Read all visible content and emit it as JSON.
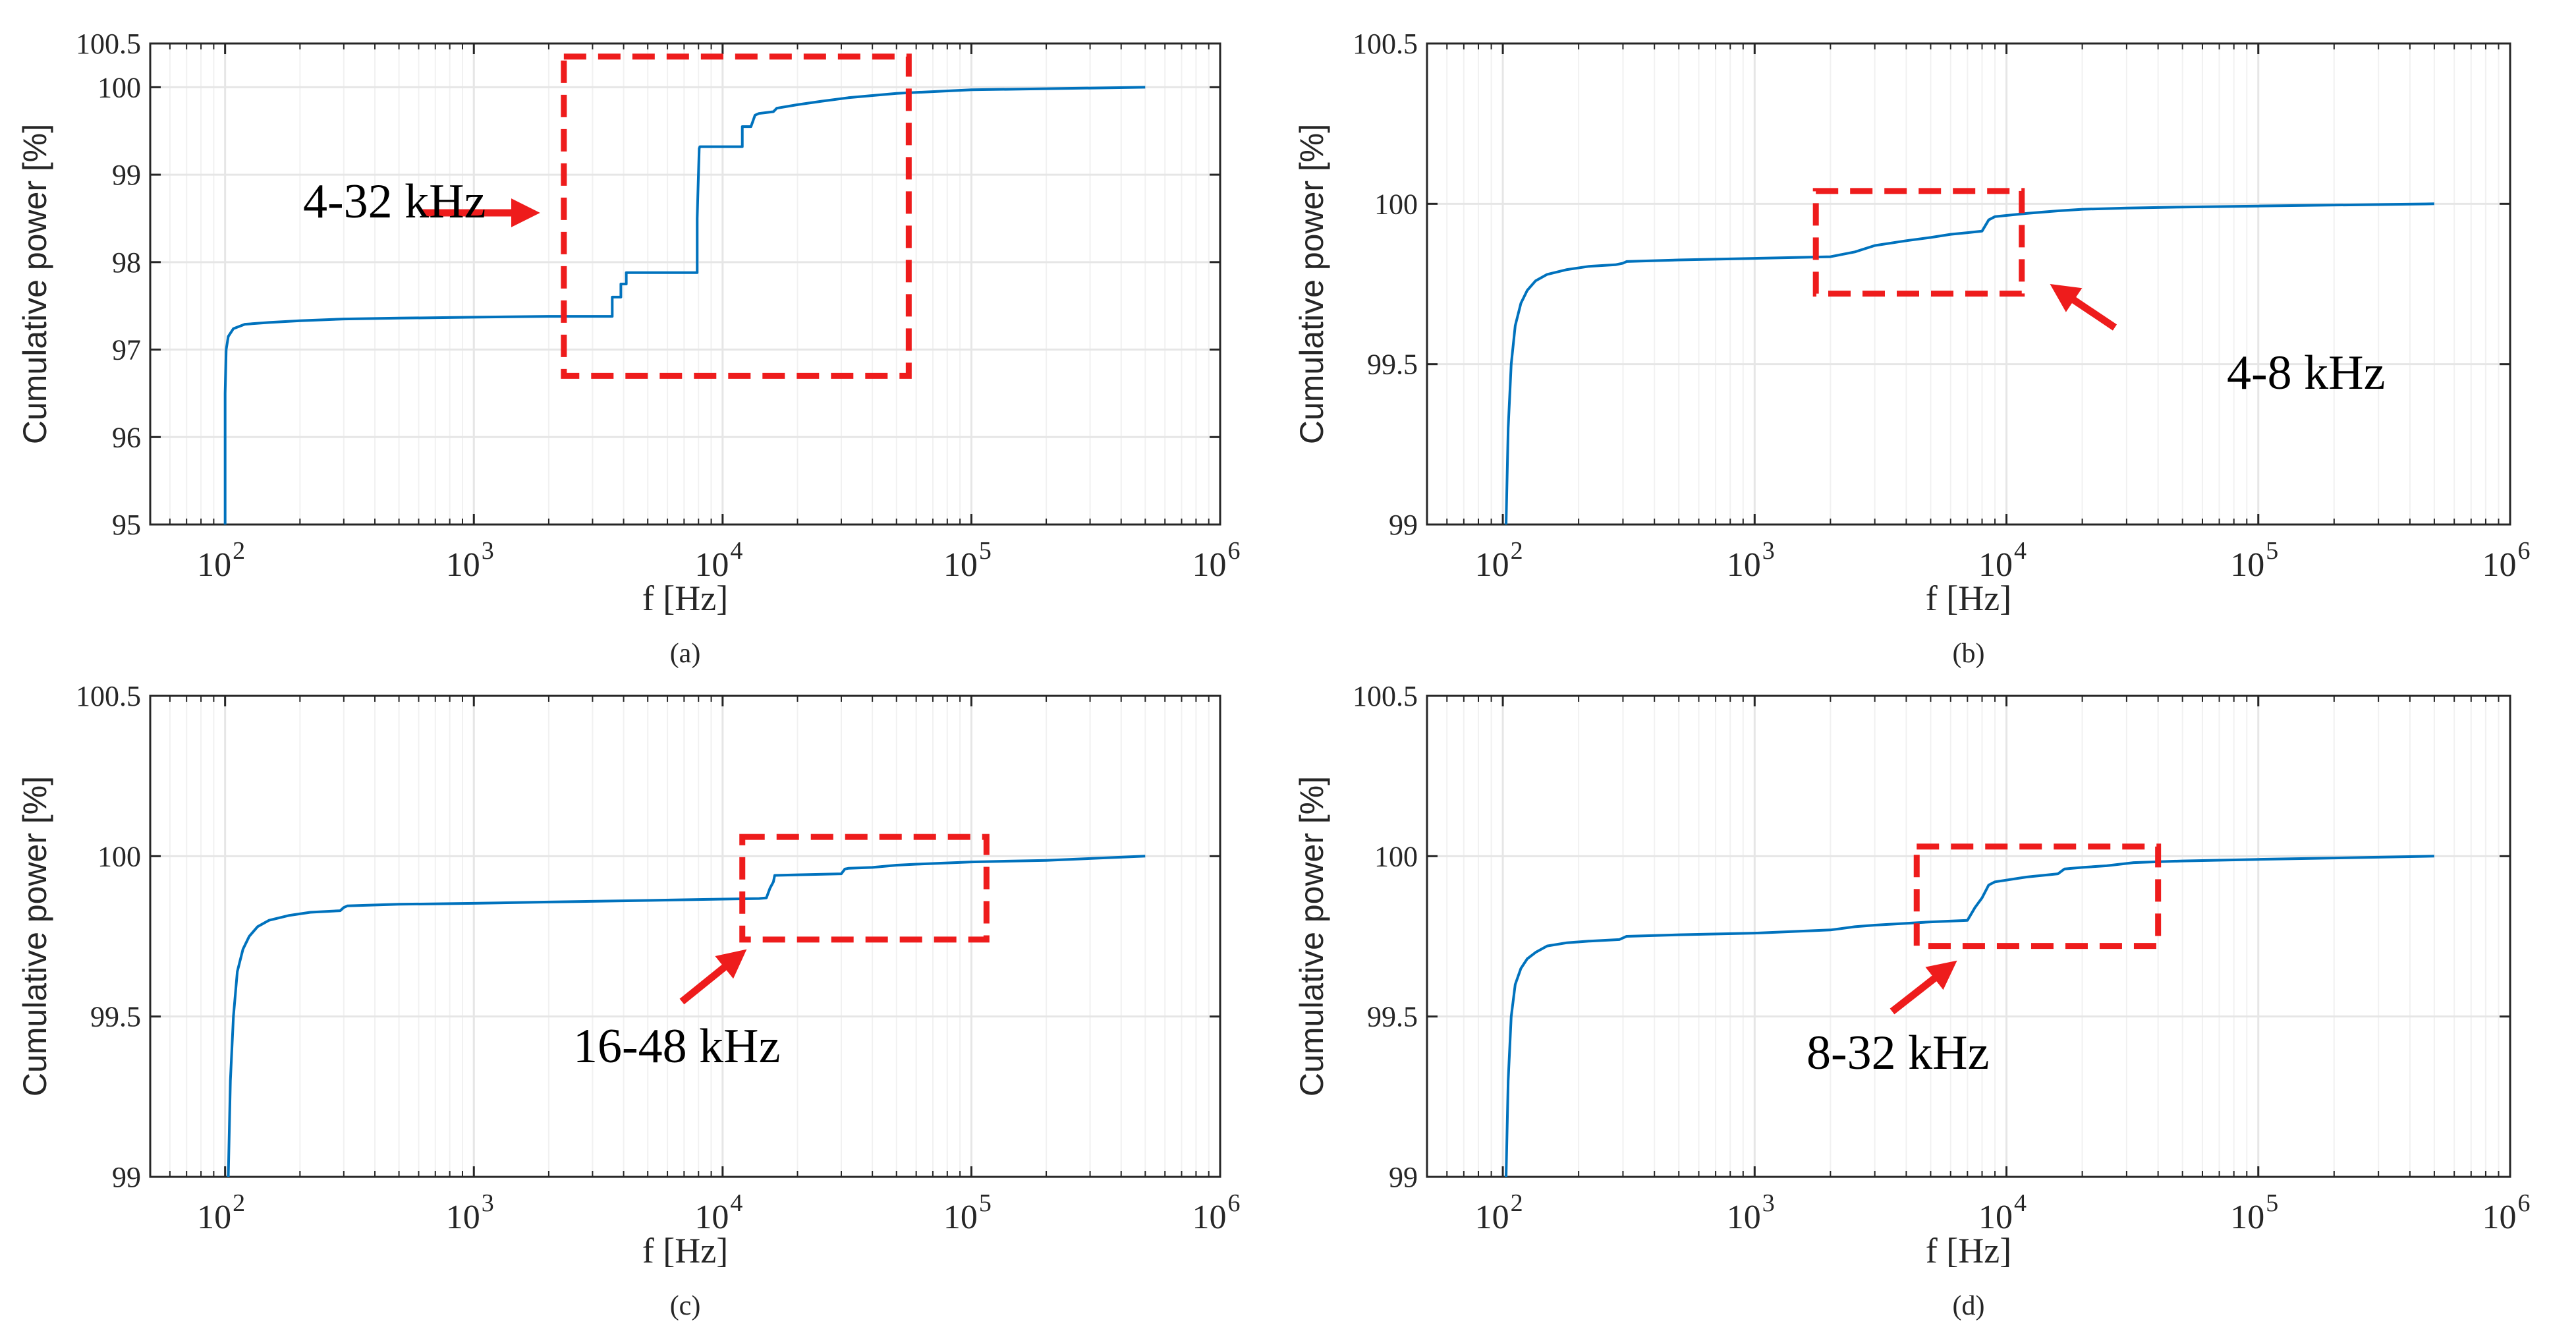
{
  "colors": {
    "line": "#0072BD",
    "grid": "#e6e6e6",
    "minor_grid": "#f1f1f1",
    "annotation": "#ee1c1c",
    "axis": "#262626"
  },
  "chart_data": [
    {
      "id": "a",
      "type": "line",
      "caption": "(a)",
      "xlabel": "f [Hz]",
      "ylabel": "Cumulative power [%]",
      "xscale": "log",
      "xlim": [
        50,
        1000000
      ],
      "ylim": [
        95,
        100.5
      ],
      "yticks": [
        95,
        96,
        97,
        98,
        99,
        100,
        100.5
      ],
      "yticklabels": [
        "95",
        "96",
        "97",
        "98",
        "99",
        "100",
        "100.5"
      ],
      "xticks": [
        100,
        1000,
        10000,
        100000,
        1000000
      ],
      "xtick_bases": [
        "10",
        "10",
        "10",
        "10",
        "10"
      ],
      "xtick_exps": [
        "2",
        "3",
        "4",
        "5",
        "6"
      ],
      "grid": true,
      "series": [
        {
          "name": "cumulative power",
          "x": [
            100,
            100,
            101,
            103,
            108,
            120,
            150,
            200,
            300,
            500,
            1000,
            2000,
            3600,
            3600,
            3900,
            3900,
            4100,
            4100,
            7900,
            7900,
            8050,
            8100,
            8300,
            12000,
            12000,
            13000,
            13500,
            14000,
            16000,
            16500,
            20000,
            25000,
            32000,
            50000,
            100000,
            500000
          ],
          "y": [
            95,
            96.5,
            97.0,
            97.15,
            97.24,
            97.29,
            97.31,
            97.33,
            97.35,
            97.36,
            97.37,
            97.38,
            97.38,
            97.6,
            97.6,
            97.75,
            97.75,
            97.88,
            97.88,
            98.5,
            99.3,
            99.32,
            99.32,
            99.32,
            99.55,
            99.55,
            99.68,
            99.7,
            99.72,
            99.76,
            99.8,
            99.84,
            99.88,
            99.93,
            99.97,
            100.0
          ]
        }
      ],
      "annotation": {
        "label": "4-32 kHz",
        "box_x": [
          2300,
          56000
        ],
        "box_y": [
          96.7,
          100.35
        ],
        "arrow_from": "left",
        "arrow_direction": "right"
      }
    },
    {
      "id": "b",
      "type": "line",
      "caption": "(b)",
      "xlabel": "f [Hz]",
      "ylabel": "Cumulative power [%]",
      "xscale": "log",
      "xlim": [
        50,
        1000000
      ],
      "ylim": [
        99,
        100.5
      ],
      "yticks": [
        99,
        99.5,
        100,
        100.5
      ],
      "yticklabels": [
        "99",
        "99.5",
        "100",
        "100.5"
      ],
      "xticks": [
        100,
        1000,
        10000,
        100000,
        1000000
      ],
      "xtick_bases": [
        "10",
        "10",
        "10",
        "10",
        "10"
      ],
      "xtick_exps": [
        "2",
        "3",
        "4",
        "5",
        "6"
      ],
      "grid": true,
      "series": [
        {
          "name": "cumulative power",
          "x": [
            103,
            105,
            108,
            112,
            118,
            125,
            135,
            150,
            180,
            220,
            280,
            300,
            310,
            500,
            1000,
            2000,
            2500,
            3000,
            4000,
            5000,
            6000,
            7000,
            8000,
            8500,
            9000,
            12000,
            16000,
            20000,
            30000,
            50000,
            100000,
            500000
          ],
          "y": [
            99.0,
            99.3,
            99.5,
            99.62,
            99.69,
            99.73,
            99.76,
            99.78,
            99.795,
            99.805,
            99.81,
            99.815,
            99.82,
            99.825,
            99.83,
            99.835,
            99.85,
            99.87,
            99.885,
            99.895,
            99.905,
            99.91,
            99.915,
            99.95,
            99.96,
            99.97,
            99.978,
            99.983,
            99.987,
            99.99,
            99.993,
            100.0
          ]
        }
      ],
      "annotation": {
        "label": "4-8 kHz",
        "box_x": [
          1750,
          11500
        ],
        "box_y": [
          99.72,
          100.04
        ],
        "arrow_from": "bottom-right",
        "arrow_direction": "up-left"
      }
    },
    {
      "id": "c",
      "type": "line",
      "caption": "(c)",
      "xlabel": "f [Hz]",
      "ylabel": "Cumulative power [%]",
      "xscale": "log",
      "xlim": [
        50,
        1000000
      ],
      "ylim": [
        99,
        100.5
      ],
      "yticks": [
        99,
        99.5,
        100,
        100.5
      ],
      "yticklabels": [
        "99",
        "99.5",
        "100",
        "100.5"
      ],
      "xticks": [
        100,
        1000,
        10000,
        100000,
        1000000
      ],
      "xtick_bases": [
        "10",
        "10",
        "10",
        "10",
        "10"
      ],
      "xtick_exps": [
        "2",
        "3",
        "4",
        "5",
        "6"
      ],
      "grid": true,
      "series": [
        {
          "name": "cumulative power",
          "x": [
            103,
            105,
            108,
            112,
            118,
            125,
            135,
            150,
            180,
            220,
            290,
            300,
            310,
            500,
            1000,
            2000,
            5000,
            10000,
            14000,
            15000,
            15500,
            16000,
            16200,
            20000,
            30000,
            31000,
            32000,
            40000,
            50000,
            60000,
            100000,
            200000,
            500000
          ],
          "y": [
            99.0,
            99.3,
            99.5,
            99.64,
            99.71,
            99.75,
            99.78,
            99.8,
            99.815,
            99.825,
            99.83,
            99.84,
            99.845,
            99.85,
            99.853,
            99.857,
            99.862,
            99.866,
            99.868,
            99.87,
            99.9,
            99.92,
            99.94,
            99.942,
            99.945,
            99.96,
            99.962,
            99.965,
            99.972,
            99.975,
            99.982,
            99.987,
            100.0
          ]
        }
      ],
      "annotation": {
        "label": "16-48 kHz",
        "box_x": [
          12000,
          115000
        ],
        "box_y": [
          99.74,
          100.06
        ],
        "arrow_from": "bottom-left",
        "arrow_direction": "up-right"
      }
    },
    {
      "id": "d",
      "type": "line",
      "caption": "(d)",
      "xlabel": "f [Hz]",
      "ylabel": "Cumulative power [%]",
      "xscale": "log",
      "xlim": [
        50,
        1000000
      ],
      "ylim": [
        99,
        100.5
      ],
      "yticks": [
        99,
        99.5,
        100,
        100.5
      ],
      "yticklabels": [
        "99",
        "99.5",
        "100",
        "100.5"
      ],
      "xticks": [
        100,
        1000,
        10000,
        100000,
        1000000
      ],
      "xtick_bases": [
        "10",
        "10",
        "10",
        "10",
        "10"
      ],
      "xtick_exps": [
        "2",
        "3",
        "4",
        "5",
        "6"
      ],
      "grid": true,
      "series": [
        {
          "name": "cumulative power",
          "x": [
            103,
            105,
            108,
            112,
            118,
            125,
            135,
            150,
            180,
            220,
            290,
            300,
            310,
            500,
            1000,
            2000,
            2500,
            3000,
            5000,
            7000,
            7500,
            8000,
            8500,
            9000,
            12000,
            16000,
            17000,
            20000,
            25000,
            32000,
            50000,
            100000,
            500000
          ],
          "y": [
            99.0,
            99.3,
            99.5,
            99.6,
            99.65,
            99.68,
            99.7,
            99.72,
            99.73,
            99.735,
            99.74,
            99.745,
            99.75,
            99.755,
            99.76,
            99.77,
            99.78,
            99.785,
            99.795,
            99.8,
            99.84,
            99.87,
            99.91,
            99.92,
            99.935,
            99.945,
            99.96,
            99.965,
            99.97,
            99.98,
            99.985,
            99.99,
            100.0
          ]
        }
      ],
      "annotation": {
        "label": "8-32 kHz",
        "box_x": [
          4400,
          40000
        ],
        "box_y": [
          99.72,
          100.03
        ],
        "arrow_from": "bottom-left",
        "arrow_direction": "up-right"
      }
    }
  ]
}
